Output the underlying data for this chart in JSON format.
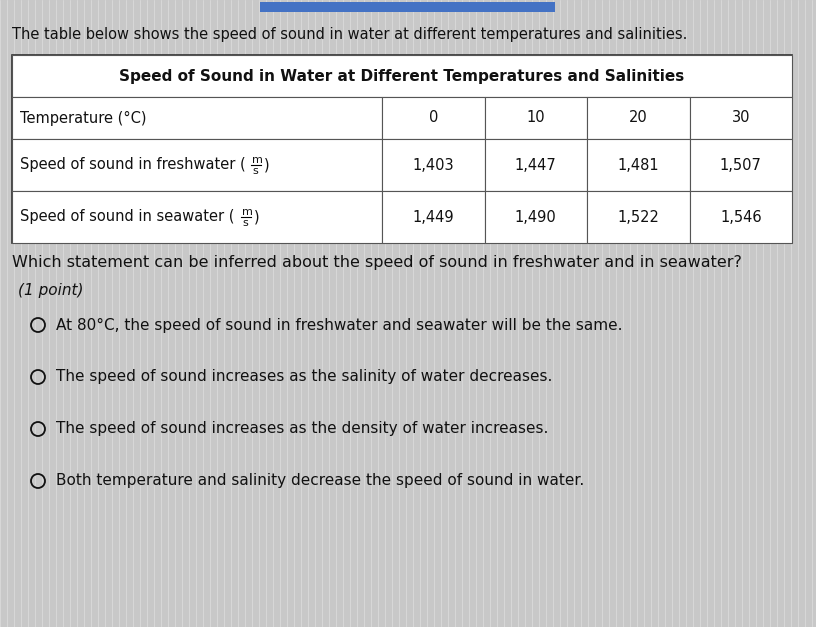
{
  "intro_text": "The table below shows the speed of sound in water at different temperatures and salinities.",
  "table_title": "Speed of Sound in Water at Different Temperatures and Salinities",
  "col_header_label": "Temperature (°C)",
  "col_headers": [
    "0",
    "10",
    "20",
    "30"
  ],
  "row1_values": [
    "1,403",
    "1,447",
    "1,481",
    "1,507"
  ],
  "row2_values": [
    "1,449",
    "1,490",
    "1,522",
    "1,546"
  ],
  "question_text": "Which statement can be inferred about the speed of sound in freshwater and in seawater?",
  "point_text": "(1 point)",
  "options": [
    "At 80°C, the speed of sound in freshwater and seawater will be the same.",
    "The speed of sound increases as the salinity of water decreases.",
    "The speed of sound increases as the density of water increases.",
    "Both temperature and salinity decrease the speed of sound in water."
  ],
  "bg_color": "#c8c8c8",
  "table_bg": "#ffffff",
  "border_color": "#555555",
  "text_color": "#111111",
  "top_bar_color": "#4472c4",
  "stripe_color": "#d8d8d8",
  "intro_fontsize": 10.5,
  "table_title_fontsize": 11,
  "table_body_fontsize": 10.5,
  "question_fontsize": 11.5,
  "option_fontsize": 11,
  "point_fontsize": 11
}
